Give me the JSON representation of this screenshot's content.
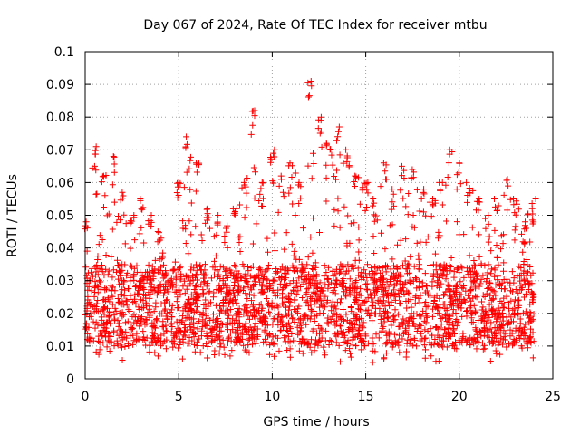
{
  "chart_data": {
    "type": "scatter",
    "title": "Day 067 of 2024, Rate Of TEC Index for receiver mtbu",
    "xlabel": "GPS time / hours",
    "ylabel": "ROTI / TECUs",
    "xlim": [
      0,
      25
    ],
    "ylim": [
      0,
      0.1
    ],
    "x_ticks": [
      "0",
      "5",
      "10",
      "15",
      "20",
      "25"
    ],
    "y_ticks": [
      "0",
      "0.01",
      "0.02",
      "0.03",
      "0.04",
      "0.05",
      "0.06",
      "0.07",
      "0.08",
      "0.09",
      "0.1"
    ],
    "grid": true,
    "marker": "+",
    "series_color": "#ff0000",
    "data_summary": {
      "x_start": 0,
      "x_end": 24,
      "gap_hours": [
        4.4,
        4.6
      ],
      "typical_band": [
        0.01,
        0.035
      ],
      "envelope": [
        [
          0,
          0.048
        ],
        [
          0.5,
          0.071
        ],
        [
          1,
          0.062
        ],
        [
          1.5,
          0.068
        ],
        [
          2,
          0.057
        ],
        [
          2.5,
          0.05
        ],
        [
          3,
          0.055
        ],
        [
          3.5,
          0.05
        ],
        [
          4,
          0.045
        ],
        [
          4.4,
          0.03
        ],
        [
          4.6,
          0.03
        ],
        [
          5,
          0.06
        ],
        [
          5.5,
          0.074
        ],
        [
          6,
          0.066
        ],
        [
          6.5,
          0.052
        ],
        [
          7,
          0.05
        ],
        [
          7.5,
          0.046
        ],
        [
          8,
          0.052
        ],
        [
          8.5,
          0.06
        ],
        [
          9,
          0.082
        ],
        [
          9.5,
          0.06
        ],
        [
          10,
          0.07
        ],
        [
          10.5,
          0.062
        ],
        [
          11,
          0.066
        ],
        [
          11.5,
          0.06
        ],
        [
          12,
          0.091
        ],
        [
          12.5,
          0.08
        ],
        [
          13,
          0.072
        ],
        [
          13.5,
          0.077
        ],
        [
          14,
          0.07
        ],
        [
          14.5,
          0.062
        ],
        [
          15,
          0.06
        ],
        [
          15.5,
          0.055
        ],
        [
          16,
          0.066
        ],
        [
          16.5,
          0.058
        ],
        [
          17,
          0.065
        ],
        [
          17.5,
          0.064
        ],
        [
          18,
          0.058
        ],
        [
          18.5,
          0.055
        ],
        [
          19,
          0.06
        ],
        [
          19.5,
          0.07
        ],
        [
          20,
          0.066
        ],
        [
          20.5,
          0.06
        ],
        [
          21,
          0.055
        ],
        [
          21.5,
          0.05
        ],
        [
          22,
          0.055
        ],
        [
          22.5,
          0.061
        ],
        [
          23,
          0.055
        ],
        [
          23.5,
          0.048
        ],
        [
          24,
          0.055
        ]
      ]
    }
  }
}
